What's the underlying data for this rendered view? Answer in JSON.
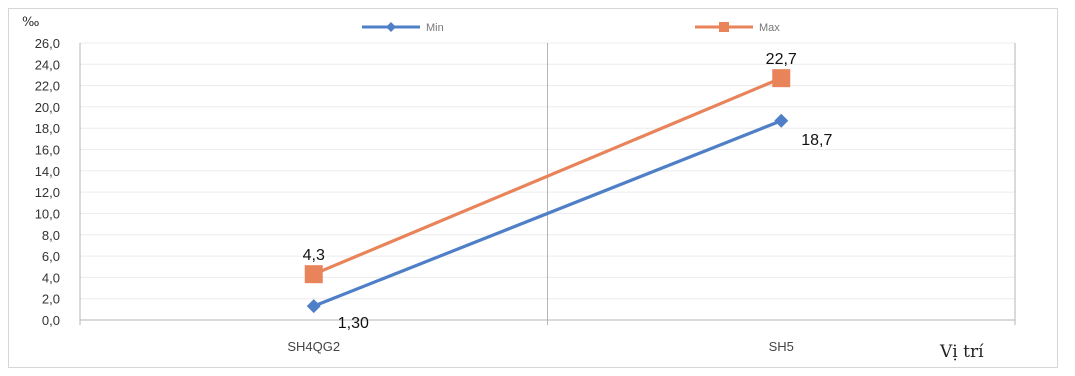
{
  "chart_data": {
    "type": "line",
    "categories": [
      "SH4QG2",
      "SH5"
    ],
    "series": [
      {
        "name": "Min",
        "values": [
          1.3,
          18.7
        ],
        "labels": [
          "1,30",
          "18,7"
        ],
        "color": "#4f7fc7",
        "marker": "diamond"
      },
      {
        "name": "Max",
        "values": [
          4.3,
          22.7
        ],
        "labels": [
          "4,3",
          "22,7"
        ],
        "color": "#e8835a",
        "marker": "square"
      }
    ],
    "ylabel": "‰",
    "xlabel": "Vị trí",
    "ylim": [
      0,
      26
    ],
    "yticks": [
      "0,0",
      "2,0",
      "4,0",
      "6,0",
      "8,0",
      "10,0",
      "12,0",
      "14,0",
      "16,0",
      "18,0",
      "20,0",
      "22,0",
      "24,0",
      "26,0"
    ],
    "grid": true,
    "legend": "top-center"
  }
}
